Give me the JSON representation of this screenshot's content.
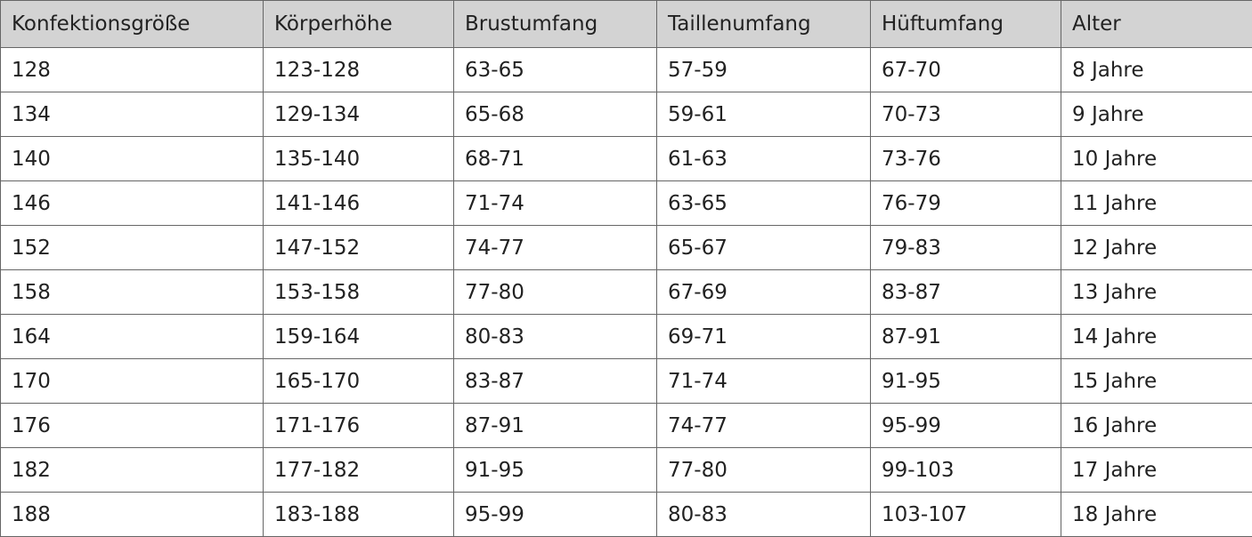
{
  "table": {
    "headers": [
      "Konfektionsgröße",
      "Körperhöhe",
      "Brustumfang",
      "Taillenumfang",
      "Hüftumfang",
      "Alter"
    ],
    "rows": [
      [
        "128",
        "123-128",
        "63-65",
        "57-59",
        "67-70",
        "8 Jahre"
      ],
      [
        "134",
        "129-134",
        "65-68",
        "59-61",
        "70-73",
        "9 Jahre"
      ],
      [
        "140",
        "135-140",
        "68-71",
        "61-63",
        "73-76",
        "10 Jahre"
      ],
      [
        "146",
        "141-146",
        "71-74",
        "63-65",
        "76-79",
        "11 Jahre"
      ],
      [
        "152",
        "147-152",
        "74-77",
        "65-67",
        "79-83",
        "12 Jahre"
      ],
      [
        "158",
        "153-158",
        "77-80",
        "67-69",
        "83-87",
        "13 Jahre"
      ],
      [
        "164",
        "159-164",
        "80-83",
        "69-71",
        "87-91",
        "14 Jahre"
      ],
      [
        "170",
        "165-170",
        "83-87",
        "71-74",
        "91-95",
        "15 Jahre"
      ],
      [
        "176",
        "171-176",
        "87-91",
        "74-77",
        "95-99",
        "16 Jahre"
      ],
      [
        "182",
        "177-182",
        "91-95",
        "77-80",
        "99-103",
        "17 Jahre"
      ],
      [
        "188",
        "183-188",
        "95-99",
        "80-83",
        "103-107",
        "18 Jahre"
      ]
    ]
  },
  "colors": {
    "header_bg": "#d3d3d3",
    "border": "#666666"
  }
}
